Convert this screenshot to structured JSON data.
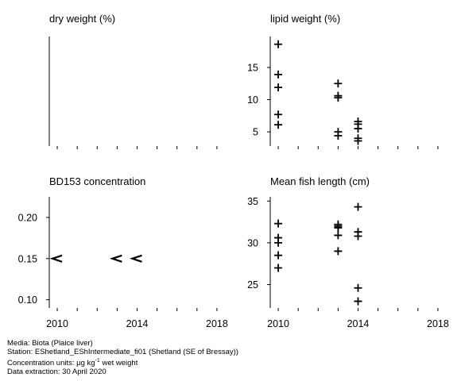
{
  "chart_data": [
    {
      "type": "scatter",
      "title": "dry weight (%)",
      "x_ticks": [
        "2010",
        "2014",
        "2018"
      ],
      "xlim": [
        2009.6,
        2018.6
      ],
      "points": []
    },
    {
      "type": "scatter",
      "title": "lipid weight (%)",
      "x_ticks": [
        "2010",
        "2014",
        "2018"
      ],
      "xlim": [
        2009.6,
        2018.6
      ],
      "y_ticks": [
        "5",
        "10",
        "15"
      ],
      "ylim": [
        2.8,
        19.8
      ],
      "marker": "+",
      "points": [
        {
          "x": 2010,
          "y": 18.6
        },
        {
          "x": 2010,
          "y": 13.9
        },
        {
          "x": 2010,
          "y": 11.9
        },
        {
          "x": 2010,
          "y": 7.7
        },
        {
          "x": 2010,
          "y": 6.1
        },
        {
          "x": 2013,
          "y": 12.5
        },
        {
          "x": 2013,
          "y": 10.6
        },
        {
          "x": 2013,
          "y": 10.3
        },
        {
          "x": 2013,
          "y": 5.0
        },
        {
          "x": 2013,
          "y": 4.4
        },
        {
          "x": 2014,
          "y": 6.6
        },
        {
          "x": 2014,
          "y": 6.2
        },
        {
          "x": 2014,
          "y": 5.5
        },
        {
          "x": 2014,
          "y": 4.0
        },
        {
          "x": 2014,
          "y": 3.6
        }
      ]
    },
    {
      "type": "scatter",
      "title": "BD153 concentration",
      "x_ticks": [
        "2010",
        "2014",
        "2018"
      ],
      "xlim": [
        2009.6,
        2018.6
      ],
      "y_ticks": [
        "0.10",
        "0.15",
        "0.20"
      ],
      "ylim": [
        0.09,
        0.225
      ],
      "marker": "<",
      "note": "less-than markers indicate values below detection limit",
      "points": [
        {
          "x": 2010,
          "y": 0.15
        },
        {
          "x": 2013,
          "y": 0.15
        },
        {
          "x": 2014,
          "y": 0.15
        }
      ]
    },
    {
      "type": "scatter",
      "title": "Mean fish length (cm)",
      "x_ticks": [
        "2010",
        "2014",
        "2018"
      ],
      "xlim": [
        2009.6,
        2018.6
      ],
      "y_ticks": [
        "25",
        "30",
        "35"
      ],
      "ylim": [
        22.2,
        35.5
      ],
      "marker": "+",
      "points": [
        {
          "x": 2010,
          "y": 32.3
        },
        {
          "x": 2010,
          "y": 30.6
        },
        {
          "x": 2010,
          "y": 30.0
        },
        {
          "x": 2010,
          "y": 28.5
        },
        {
          "x": 2010,
          "y": 27.0
        },
        {
          "x": 2013,
          "y": 32.2
        },
        {
          "x": 2013,
          "y": 32.0
        },
        {
          "x": 2013,
          "y": 31.8
        },
        {
          "x": 2013,
          "y": 30.9
        },
        {
          "x": 2013,
          "y": 29.0
        },
        {
          "x": 2014,
          "y": 34.3
        },
        {
          "x": 2014,
          "y": 31.3
        },
        {
          "x": 2014,
          "y": 30.8
        },
        {
          "x": 2014,
          "y": 24.6
        },
        {
          "x": 2014,
          "y": 23.0
        }
      ]
    }
  ],
  "footer": {
    "media": "Media: Biota (Plaice liver)",
    "station": "Station: EShetland_EShIntermediate_fi01 (Shetland (SE of Bressay))",
    "units_prefix": "Concentration units:  µg kg",
    "units_sup": "-1",
    "units_suffix": " wet weight",
    "extraction": "Data extraction: 30 April 2020"
  }
}
